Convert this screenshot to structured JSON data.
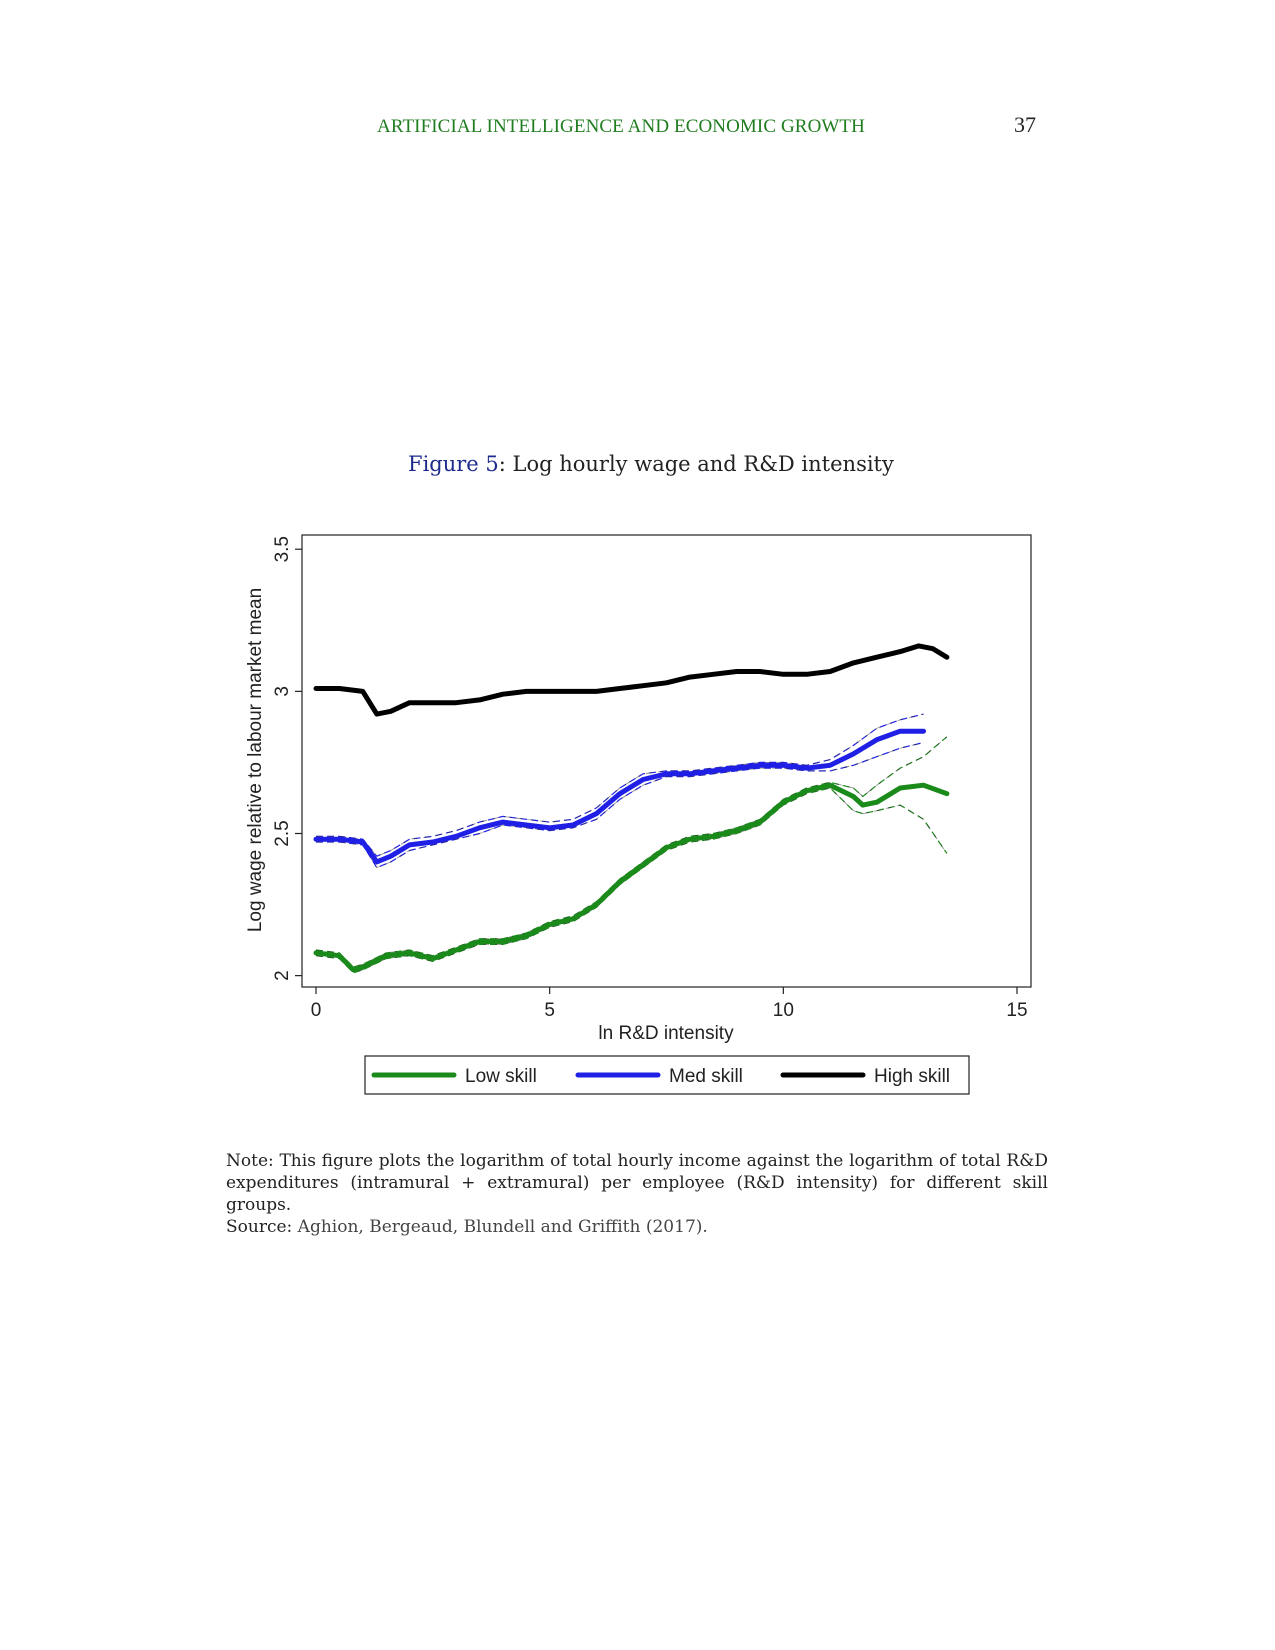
{
  "header": {
    "running_title": "ARTIFICIAL INTELLIGENCE AND ECONOMIC GROWTH",
    "page_number": "37"
  },
  "figure": {
    "label": "Figure 5",
    "separator": ":",
    "title": " Log hourly wage and R&D intensity"
  },
  "note": {
    "text": "Note:  This figure plots the logarithm of total hourly income against the logarithm of total R&D expenditures (intramural + extramural) per employee (R&D intensity) for different skill groups.",
    "source_label": "Source:",
    "source_text": " Aghion, Bergeaud, Blundell and Griffith (2017)."
  },
  "colors": {
    "low": "#1a8a1a",
    "med": "#1f1fe6",
    "high": "#000000",
    "running_title": "#1f7d1f",
    "figure_label": "#1d2a8c"
  },
  "chart_data": {
    "type": "line",
    "xlabel": "ln R&D intensity",
    "ylabel": "Log wage relative to labour market mean",
    "xlim": [
      -0.3,
      15.3
    ],
    "ylim": [
      1.96,
      3.55
    ],
    "xticks": [
      0,
      5,
      10,
      15
    ],
    "xtick_labels": [
      "0",
      "5",
      "10",
      "15"
    ],
    "yticks": [
      2,
      2.5,
      3,
      3.5
    ],
    "ytick_labels": [
      "2",
      "2.5",
      "3",
      "3.5"
    ],
    "grid": false,
    "legend": {
      "position": "bottom",
      "entries": [
        "Low skill",
        "Med skill",
        "High skill"
      ]
    },
    "series": [
      {
        "name": "Low skill",
        "color_key": "low",
        "x": [
          0,
          0.5,
          0.8,
          1.0,
          1.5,
          2.0,
          2.5,
          3.0,
          3.5,
          4.0,
          4.5,
          5.0,
          5.5,
          6.0,
          6.5,
          7.0,
          7.5,
          8.0,
          8.5,
          9.0,
          9.5,
          10.0,
          10.5,
          11.0,
          11.5,
          11.7,
          12.0,
          12.5,
          13.0,
          13.5
        ],
        "y": [
          2.08,
          2.07,
          2.02,
          2.03,
          2.07,
          2.08,
          2.06,
          2.09,
          2.12,
          2.12,
          2.14,
          2.18,
          2.2,
          2.25,
          2.33,
          2.39,
          2.45,
          2.48,
          2.49,
          2.51,
          2.54,
          2.61,
          2.65,
          2.67,
          2.63,
          2.6,
          2.61,
          2.66,
          2.67,
          2.64
        ],
        "ci_lower": [
          2.07,
          2.06,
          2.01,
          2.02,
          2.06,
          2.07,
          2.05,
          2.08,
          2.11,
          2.11,
          2.13,
          2.17,
          2.19,
          2.24,
          2.32,
          2.38,
          2.44,
          2.47,
          2.48,
          2.5,
          2.53,
          2.6,
          2.64,
          2.66,
          2.58,
          2.57,
          2.58,
          2.6,
          2.55,
          2.43
        ],
        "ci_upper": [
          2.09,
          2.08,
          2.03,
          2.04,
          2.08,
          2.09,
          2.07,
          2.1,
          2.13,
          2.13,
          2.15,
          2.19,
          2.21,
          2.26,
          2.34,
          2.4,
          2.46,
          2.49,
          2.5,
          2.52,
          2.55,
          2.62,
          2.66,
          2.68,
          2.66,
          2.63,
          2.67,
          2.73,
          2.77,
          2.84
        ]
      },
      {
        "name": "Med skill",
        "color_key": "med",
        "x": [
          0,
          0.5,
          1.0,
          1.3,
          1.6,
          2.0,
          2.5,
          3.0,
          3.5,
          4.0,
          4.5,
          5.0,
          5.5,
          6.0,
          6.5,
          7.0,
          7.5,
          8.0,
          8.5,
          9.0,
          9.5,
          10.0,
          10.5,
          11.0,
          11.5,
          12.0,
          12.5,
          13.0
        ],
        "y": [
          2.48,
          2.48,
          2.47,
          2.4,
          2.42,
          2.46,
          2.47,
          2.49,
          2.52,
          2.54,
          2.53,
          2.52,
          2.53,
          2.57,
          2.64,
          2.69,
          2.71,
          2.71,
          2.72,
          2.73,
          2.74,
          2.74,
          2.73,
          2.74,
          2.78,
          2.83,
          2.86,
          2.86
        ],
        "ci_lower": [
          2.47,
          2.47,
          2.46,
          2.38,
          2.4,
          2.44,
          2.46,
          2.48,
          2.5,
          2.53,
          2.52,
          2.51,
          2.52,
          2.55,
          2.62,
          2.67,
          2.7,
          2.7,
          2.71,
          2.72,
          2.73,
          2.73,
          2.72,
          2.72,
          2.74,
          2.77,
          2.8,
          2.82
        ],
        "ci_upper": [
          2.49,
          2.49,
          2.48,
          2.42,
          2.44,
          2.48,
          2.49,
          2.51,
          2.54,
          2.56,
          2.55,
          2.54,
          2.55,
          2.59,
          2.66,
          2.71,
          2.72,
          2.72,
          2.73,
          2.74,
          2.75,
          2.75,
          2.74,
          2.76,
          2.81,
          2.87,
          2.9,
          2.92
        ]
      },
      {
        "name": "High skill",
        "color_key": "high",
        "x": [
          0,
          0.5,
          1.0,
          1.3,
          1.6,
          2.0,
          2.5,
          3.0,
          3.5,
          4.0,
          4.5,
          5.0,
          5.5,
          6.0,
          6.5,
          7.0,
          7.5,
          8.0,
          8.5,
          9.0,
          9.5,
          10.0,
          10.5,
          11.0,
          11.5,
          12.0,
          12.5,
          12.9,
          13.2,
          13.5
        ],
        "y": [
          3.01,
          3.01,
          3.0,
          2.92,
          2.93,
          2.96,
          2.96,
          2.96,
          2.97,
          2.99,
          3.0,
          3.0,
          3.0,
          3.0,
          3.01,
          3.02,
          3.03,
          3.05,
          3.06,
          3.07,
          3.07,
          3.06,
          3.06,
          3.07,
          3.1,
          3.12,
          3.14,
          3.16,
          3.15,
          3.12
        ]
      }
    ]
  }
}
